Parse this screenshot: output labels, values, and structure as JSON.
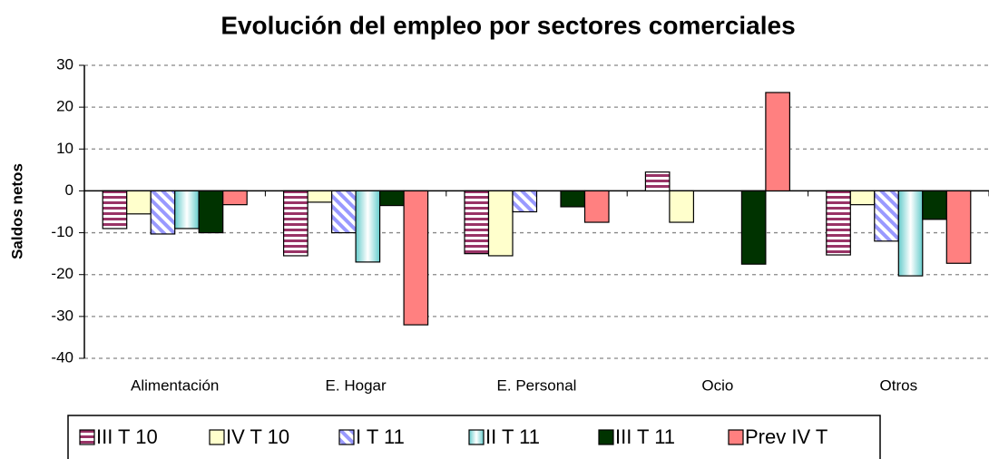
{
  "chart_data": {
    "type": "bar",
    "title": "Evolución del empleo por sectores comerciales",
    "y_label": "Saldos netos",
    "categories": [
      "Alimentación",
      "E. Hogar",
      "E. Personal",
      "Ocio",
      "Otros"
    ],
    "series": [
      {
        "name": "III T 10",
        "color": "#993366",
        "pattern": "horizontal",
        "values": [
          -9,
          -15.5,
          -15,
          4.5,
          -15.3
        ]
      },
      {
        "name": "IV T 10",
        "color": "#ffffcc",
        "pattern": "solid",
        "values": [
          -5.5,
          -2.7,
          -15.5,
          -7.5,
          -3.3
        ]
      },
      {
        "name": "I T 11",
        "color": "#9999ff",
        "pattern": "diagonal",
        "values": [
          -10.3,
          -10,
          -5,
          null,
          -12
        ]
      },
      {
        "name": "II T 11",
        "color": "#66cccc",
        "pattern": "gradient",
        "values": [
          -9,
          -17,
          null,
          null,
          -20.3
        ]
      },
      {
        "name": "III T 11",
        "color": "#003300",
        "pattern": "solid",
        "values": [
          -10,
          -3.5,
          -3.8,
          -17.5,
          -6.8
        ]
      },
      {
        "name": "Prev IV T",
        "color": "#ff8080",
        "pattern": "solid",
        "values": [
          -3.3,
          -32,
          -7.5,
          23.5,
          -17.3
        ]
      }
    ],
    "ylim": [
      -40,
      30
    ],
    "yticks": [
      -40,
      -30,
      -20,
      -10,
      0,
      10,
      20,
      30
    ],
    "grid": true,
    "legend": "bottom"
  }
}
